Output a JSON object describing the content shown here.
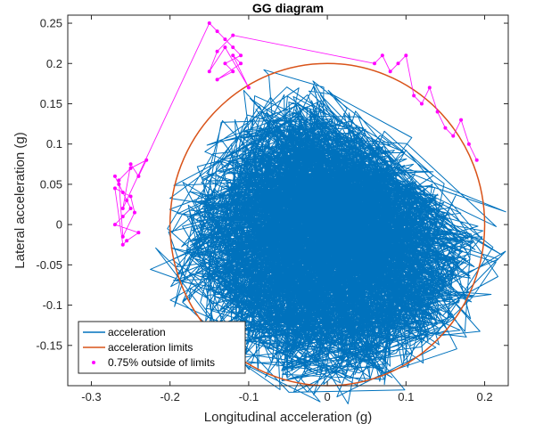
{
  "chart_data": {
    "type": "scatter",
    "title": "GG diagram",
    "xlabel": "Longitudinal acceleration (g)",
    "ylabel": "Lateral acceleration (g)",
    "xlim": [
      -0.33,
      0.23
    ],
    "ylim": [
      -0.2,
      0.26
    ],
    "xticks": [
      -0.3,
      -0.2,
      -0.1,
      0,
      0.1,
      0.2
    ],
    "xtick_labels": [
      "-0.3",
      "-0.2",
      "-0.1",
      "0",
      "0.1",
      "0.2"
    ],
    "yticks": [
      -0.15,
      -0.1,
      -0.05,
      0,
      0.05,
      0.1,
      0.15,
      0.2,
      0.25
    ],
    "ytick_labels": [
      "-0.15",
      "-0.1",
      "-0.05",
      "0",
      "0.05",
      "0.1",
      "0.15",
      "0.2",
      "0.25"
    ],
    "legend": {
      "position": "bottom-left",
      "entries": [
        "acceleration",
        "acceleration limits",
        "0.75% outside of limits"
      ]
    },
    "series": [
      {
        "name": "acceleration",
        "style": "line",
        "color": "#0072BD",
        "note": "Dense random-walk trace; approximate outline points",
        "x": [
          -0.25,
          -0.2,
          -0.15,
          -0.1,
          -0.05,
          0,
          0.05,
          0.1,
          0.15,
          0.19,
          0.15,
          0.1,
          0.05,
          0.02,
          -0.02,
          -0.06,
          -0.1,
          -0.15,
          -0.2,
          -0.25
        ],
        "y": [
          0.0,
          0.06,
          0.12,
          0.2,
          0.21,
          0.18,
          0.14,
          0.1,
          0.09,
          0.02,
          -0.05,
          -0.12,
          -0.15,
          -0.19,
          -0.16,
          -0.12,
          -0.08,
          -0.06,
          -0.04,
          0.0
        ]
      },
      {
        "name": "acceleration limits",
        "style": "ellipse",
        "color": "#D95319",
        "center": [
          0.0,
          0.0
        ],
        "semi_axis_x": 0.2,
        "semi_axis_y": 0.2
      },
      {
        "name": "0.75% outside of limits",
        "style": "markers",
        "color": "#FF00FF",
        "x": [
          -0.27,
          -0.265,
          -0.26,
          -0.255,
          -0.25,
          -0.26,
          -0.27,
          -0.24,
          -0.255,
          -0.26,
          -0.27,
          -0.25,
          -0.245,
          -0.26,
          -0.265,
          -0.25,
          -0.23,
          -0.24,
          -0.25,
          -0.26,
          -0.15,
          -0.14,
          -0.13,
          -0.12,
          -0.11,
          -0.13,
          -0.12,
          -0.14,
          -0.11,
          -0.12,
          -0.1,
          -0.13,
          -0.15,
          -0.14,
          -0.12,
          0.06,
          0.07,
          0.08,
          0.09,
          0.1,
          0.11,
          0.12,
          0.13,
          0.14,
          0.15,
          0.16,
          0.17,
          0.18,
          0.19
        ],
        "y": [
          0.06,
          0.05,
          0.04,
          0.03,
          0.02,
          0.01,
          0.0,
          -0.01,
          -0.02,
          -0.025,
          0.045,
          0.035,
          0.015,
          -0.015,
          0.055,
          0.07,
          0.08,
          0.06,
          0.075,
          0.02,
          0.25,
          0.24,
          0.23,
          0.22,
          0.21,
          0.2,
          0.19,
          0.18,
          0.2,
          0.21,
          0.17,
          0.22,
          0.19,
          0.215,
          0.235,
          0.2,
          0.21,
          0.19,
          0.2,
          0.21,
          0.16,
          0.15,
          0.17,
          0.14,
          0.12,
          0.11,
          0.13,
          0.1,
          0.08
        ]
      }
    ]
  }
}
